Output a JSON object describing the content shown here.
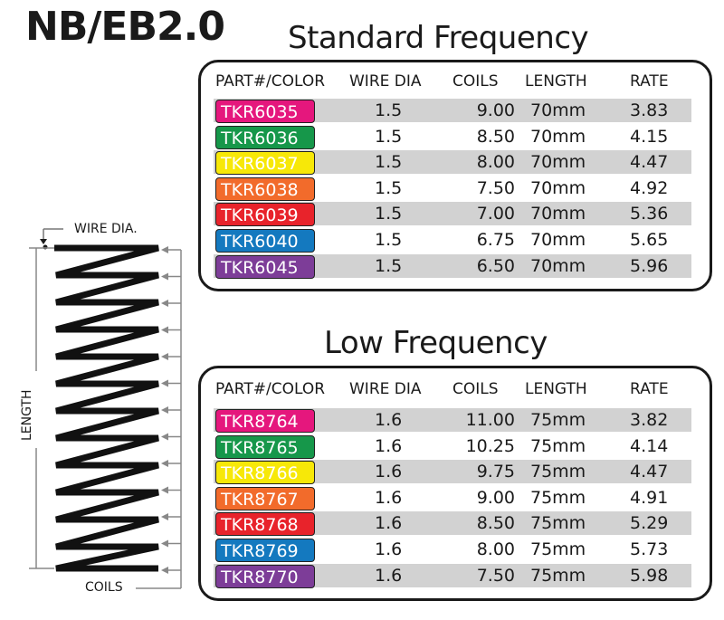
{
  "title": "NB/EB2.0",
  "standard": {
    "title": "Standard Frequency",
    "headers": [
      "PART#/COLOR",
      "WIRE DIA",
      "COILS",
      "LENGTH",
      "RATE"
    ],
    "rows": [
      {
        "part": "TKR6035",
        "color": "#e5177d",
        "wire": "1.5",
        "coils": "9.00",
        "length": "70mm",
        "rate": "3.83"
      },
      {
        "part": "TKR6036",
        "color": "#16974a",
        "wire": "1.5",
        "coils": "8.50",
        "length": "70mm",
        "rate": "4.15"
      },
      {
        "part": "TKR6037",
        "color": "#f7e808",
        "wire": "1.5",
        "coils": "8.00",
        "length": "70mm",
        "rate": "4.47"
      },
      {
        "part": "TKR6038",
        "color": "#f26b2b",
        "wire": "1.5",
        "coils": "7.50",
        "length": "70mm",
        "rate": "4.92"
      },
      {
        "part": "TKR6039",
        "color": "#e8232b",
        "wire": "1.5",
        "coils": "7.00",
        "length": "70mm",
        "rate": "5.36"
      },
      {
        "part": "TKR6040",
        "color": "#1479bf",
        "wire": "1.5",
        "coils": "6.75",
        "length": "70mm",
        "rate": "5.65"
      },
      {
        "part": "TKR6045",
        "color": "#7d3d98",
        "wire": "1.5",
        "coils": "6.50",
        "length": "70mm",
        "rate": "5.96"
      }
    ]
  },
  "low": {
    "title": "Low Frequency",
    "headers": [
      "PART#/COLOR",
      "WIRE DIA",
      "COILS",
      "LENGTH",
      "RATE"
    ],
    "rows": [
      {
        "part": "TKR8764",
        "color": "#e5177d",
        "wire": "1.6",
        "coils": "11.00",
        "length": "75mm",
        "rate": "3.82"
      },
      {
        "part": "TKR8765",
        "color": "#16974a",
        "wire": "1.6",
        "coils": "10.25",
        "length": "75mm",
        "rate": "4.14"
      },
      {
        "part": "TKR8766",
        "color": "#f7e808",
        "wire": "1.6",
        "coils": "9.75",
        "length": "75mm",
        "rate": "4.47"
      },
      {
        "part": "TKR8767",
        "color": "#f26b2b",
        "wire": "1.6",
        "coils": "9.00",
        "length": "75mm",
        "rate": "4.91"
      },
      {
        "part": "TKR8768",
        "color": "#e8232b",
        "wire": "1.6",
        "coils": "8.50",
        "length": "75mm",
        "rate": "5.29"
      },
      {
        "part": "TKR8769",
        "color": "#1479bf",
        "wire": "1.6",
        "coils": "8.00",
        "length": "75mm",
        "rate": "5.73"
      },
      {
        "part": "TKR8770",
        "color": "#7d3d98",
        "wire": "1.6",
        "coils": "7.50",
        "length": "75mm",
        "rate": "5.98"
      }
    ]
  },
  "diagram": {
    "wire_label": "WIRE DIA.",
    "length_label": "LENGTH",
    "coils_label": "COILS"
  }
}
